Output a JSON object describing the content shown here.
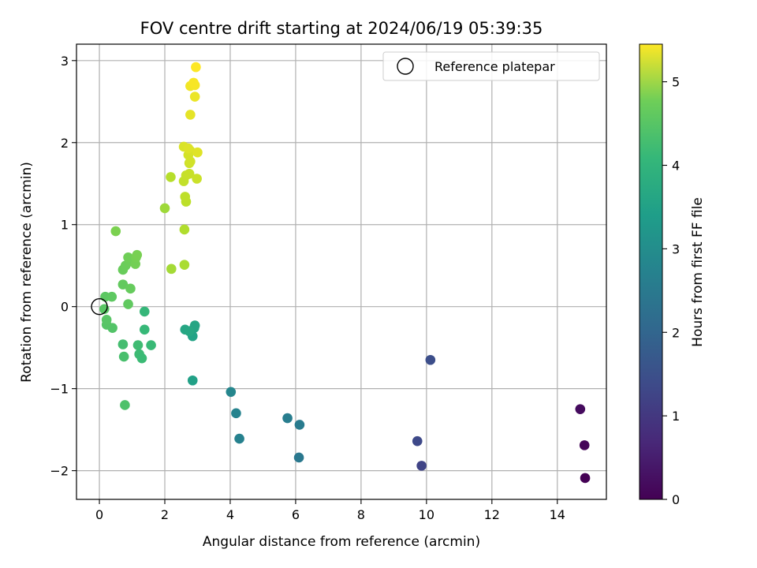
{
  "chart_data": {
    "type": "scatter",
    "title": "FOV centre drift starting at 2024/06/19 05:39:35",
    "xlabel": "Angular distance from reference (arcmin)",
    "ylabel": "Rotation from reference (arcmin)",
    "xlim": [
      -0.7,
      15.5
    ],
    "ylim": [
      -2.35,
      3.2
    ],
    "xticks": [
      0,
      2,
      4,
      6,
      8,
      10,
      12,
      14
    ],
    "yticks": [
      -2,
      -1,
      0,
      1,
      2,
      3
    ],
    "xtick_labels": [
      "0",
      "2",
      "4",
      "6",
      "8",
      "10",
      "12",
      "14"
    ],
    "ytick_labels": [
      "−2",
      "−1",
      "0",
      "1",
      "2",
      "3"
    ],
    "grid": true,
    "legend": {
      "position": "top-right",
      "entries": [
        "Reference platepar"
      ]
    },
    "reference_point": {
      "x": 0,
      "y": 0
    },
    "colorbar": {
      "label": "Hours from first FF file",
      "colormap": "viridis",
      "range": [
        0,
        5.45
      ],
      "ticks": [
        0,
        1,
        2,
        3,
        4,
        5
      ],
      "tick_labels": [
        "0",
        "1",
        "2",
        "3",
        "4",
        "5"
      ]
    },
    "points": [
      {
        "x": 14.85,
        "y": -2.09,
        "c": 0.0
      },
      {
        "x": 14.83,
        "y": -1.69,
        "c": 0.08
      },
      {
        "x": 14.7,
        "y": -1.25,
        "c": 0.16
      },
      {
        "x": 9.85,
        "y": -1.94,
        "c": 1.1
      },
      {
        "x": 9.72,
        "y": -1.64,
        "c": 1.2
      },
      {
        "x": 10.12,
        "y": -0.65,
        "c": 1.3
      },
      {
        "x": 6.1,
        "y": -1.84,
        "c": 2.2
      },
      {
        "x": 6.12,
        "y": -1.44,
        "c": 2.25
      },
      {
        "x": 5.75,
        "y": -1.36,
        "c": 2.3
      },
      {
        "x": 4.28,
        "y": -1.61,
        "c": 2.4
      },
      {
        "x": 4.18,
        "y": -1.3,
        "c": 2.45
      },
      {
        "x": 4.02,
        "y": -1.04,
        "c": 2.5
      },
      {
        "x": 2.85,
        "y": -0.9,
        "c": 3.1
      },
      {
        "x": 2.85,
        "y": -0.36,
        "c": 3.15
      },
      {
        "x": 2.9,
        "y": -0.26,
        "c": 3.18
      },
      {
        "x": 2.92,
        "y": -0.23,
        "c": 3.2
      },
      {
        "x": 2.62,
        "y": -0.28,
        "c": 3.22
      },
      {
        "x": 2.75,
        "y": -0.3,
        "c": 3.25
      },
      {
        "x": 0.78,
        "y": -1.2,
        "c": 3.9
      },
      {
        "x": 0.75,
        "y": -0.61,
        "c": 3.85
      },
      {
        "x": 0.72,
        "y": -0.46,
        "c": 3.8
      },
      {
        "x": 1.18,
        "y": -0.47,
        "c": 3.75
      },
      {
        "x": 1.22,
        "y": -0.58,
        "c": 3.72
      },
      {
        "x": 1.3,
        "y": -0.63,
        "c": 3.7
      },
      {
        "x": 1.58,
        "y": -0.47,
        "c": 3.68
      },
      {
        "x": 1.38,
        "y": -0.28,
        "c": 3.65
      },
      {
        "x": 1.38,
        "y": -0.06,
        "c": 3.62
      },
      {
        "x": 0.4,
        "y": -0.26,
        "c": 3.95
      },
      {
        "x": 0.22,
        "y": -0.22,
        "c": 3.98
      },
      {
        "x": 0.22,
        "y": -0.16,
        "c": 4.0
      },
      {
        "x": 0.15,
        "y": -0.03,
        "c": 4.02
      },
      {
        "x": 0.18,
        "y": 0.12,
        "c": 4.05
      },
      {
        "x": 0.38,
        "y": 0.12,
        "c": 4.07
      },
      {
        "x": 0.88,
        "y": 0.03,
        "c": 4.1
      },
      {
        "x": 0.72,
        "y": 0.27,
        "c": 4.12
      },
      {
        "x": 0.95,
        "y": 0.22,
        "c": 4.15
      },
      {
        "x": 0.72,
        "y": 0.45,
        "c": 4.18
      },
      {
        "x": 0.8,
        "y": 0.5,
        "c": 4.2
      },
      {
        "x": 0.92,
        "y": 0.55,
        "c": 4.22
      },
      {
        "x": 0.88,
        "y": 0.6,
        "c": 4.25
      },
      {
        "x": 1.1,
        "y": 0.52,
        "c": 4.28
      },
      {
        "x": 1.12,
        "y": 0.6,
        "c": 4.3
      },
      {
        "x": 1.15,
        "y": 0.63,
        "c": 4.32
      },
      {
        "x": 0.5,
        "y": 0.92,
        "c": 4.35
      },
      {
        "x": 2.2,
        "y": 0.46,
        "c": 4.7
      },
      {
        "x": 2.6,
        "y": 0.51,
        "c": 4.75
      },
      {
        "x": 2.6,
        "y": 0.94,
        "c": 4.8
      },
      {
        "x": 2.0,
        "y": 1.2,
        "c": 4.65
      },
      {
        "x": 2.18,
        "y": 1.58,
        "c": 4.85
      },
      {
        "x": 2.65,
        "y": 1.28,
        "c": 4.9
      },
      {
        "x": 2.62,
        "y": 1.34,
        "c": 4.92
      },
      {
        "x": 2.58,
        "y": 1.53,
        "c": 4.95
      },
      {
        "x": 2.65,
        "y": 1.6,
        "c": 4.98
      },
      {
        "x": 2.75,
        "y": 1.62,
        "c": 5.0
      },
      {
        "x": 2.98,
        "y": 1.56,
        "c": 5.02
      },
      {
        "x": 2.75,
        "y": 1.75,
        "c": 5.05
      },
      {
        "x": 2.78,
        "y": 1.77,
        "c": 5.08
      },
      {
        "x": 2.72,
        "y": 1.85,
        "c": 5.1
      },
      {
        "x": 2.78,
        "y": 1.9,
        "c": 5.12
      },
      {
        "x": 2.58,
        "y": 1.95,
        "c": 5.15
      },
      {
        "x": 2.72,
        "y": 1.93,
        "c": 5.18
      },
      {
        "x": 3.0,
        "y": 1.88,
        "c": 5.2
      },
      {
        "x": 2.78,
        "y": 2.34,
        "c": 5.25
      },
      {
        "x": 2.92,
        "y": 2.56,
        "c": 5.3
      },
      {
        "x": 2.78,
        "y": 2.69,
        "c": 5.35
      },
      {
        "x": 2.92,
        "y": 2.7,
        "c": 5.38
      },
      {
        "x": 2.88,
        "y": 2.73,
        "c": 5.4
      },
      {
        "x": 2.95,
        "y": 2.92,
        "c": 5.45
      }
    ]
  }
}
